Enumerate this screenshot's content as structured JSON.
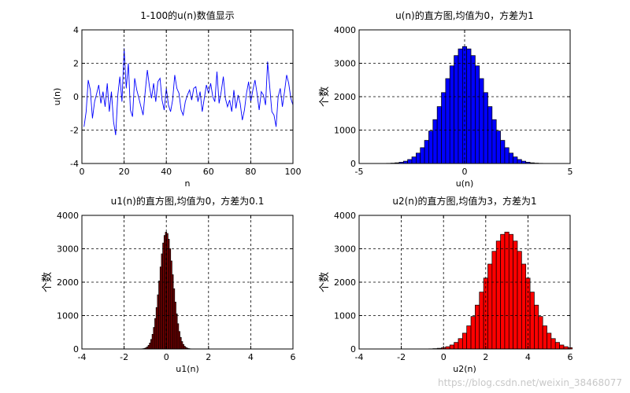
{
  "chart_data": [
    {
      "type": "line",
      "title": "1-100的u(n)数值显示",
      "xlabel": "n",
      "ylabel": "u(n)",
      "xlim": [
        0,
        100
      ],
      "ylim": [
        -4,
        4
      ],
      "xticks": [
        "0",
        "20",
        "40",
        "60",
        "80",
        "100"
      ],
      "yticks": [
        "-4",
        "-2",
        "0",
        "2",
        "4"
      ],
      "grid": true,
      "color": "#0000ff",
      "series": [
        {
          "x": [
            1,
            2,
            3,
            4,
            5,
            6,
            7,
            8,
            9,
            10,
            11,
            12,
            13,
            14,
            15,
            16,
            17,
            18,
            19,
            20,
            21,
            22,
            23,
            24,
            25,
            26,
            27,
            28,
            29,
            30,
            31,
            32,
            33,
            34,
            35,
            36,
            37,
            38,
            39,
            40,
            41,
            42,
            43,
            44,
            45,
            46,
            47,
            48,
            49,
            50,
            51,
            52,
            53,
            54,
            55,
            56,
            57,
            58,
            59,
            60,
            61,
            62,
            63,
            64,
            65,
            66,
            67,
            68,
            69,
            70,
            71,
            72,
            73,
            74,
            75,
            76,
            77,
            78,
            79,
            80,
            81,
            82,
            83,
            84,
            85,
            86,
            87,
            88,
            89,
            90,
            91,
            92,
            93,
            94,
            95,
            96,
            97,
            98,
            99,
            100
          ],
          "y": [
            -1.8,
            -0.9,
            1.0,
            0.4,
            -1.3,
            -0.3,
            0.2,
            0.7,
            -0.4,
            0.3,
            -0.6,
            0.8,
            -0.9,
            0.3,
            -1.5,
            -2.3,
            0.1,
            1.2,
            -0.3,
            2.9,
            0.5,
            2.0,
            -0.8,
            -1.2,
            1.1,
            0.4,
            -0.1,
            -0.6,
            -1.1,
            0.3,
            1.6,
            0.6,
            -0.1,
            0.8,
            -0.3,
            0.9,
            1.1,
            -0.2,
            -0.8,
            0.5,
            -0.5,
            -0.9,
            -0.2,
            1.3,
            0.5,
            0.2,
            -0.8,
            -1.1,
            -0.3,
            0.1,
            0.4,
            -0.2,
            0.5,
            0.6,
            -0.3,
            0.3,
            -0.9,
            -0.1,
            0.7,
            0.2,
            0.8,
            0.0,
            -0.3,
            1.5,
            -0.4,
            0.3,
            1.2,
            -0.1,
            -0.6,
            -0.2,
            -0.9,
            0.4,
            -0.7,
            0.1,
            -0.4,
            -1.4,
            -0.8,
            0.2,
            0.9,
            -0.3,
            0.4,
            1.0,
            0.2,
            -0.8,
            0.3,
            0.1,
            -0.5,
            2.1,
            0.6,
            -0.9,
            -1.1,
            -1.8,
            0.0,
            0.5,
            -0.6,
            0.3,
            1.3,
            0.8,
            -0.1,
            -0.5
          ]
        }
      ]
    },
    {
      "type": "bar",
      "title": "u(n)的直方图,均值为0，方差为1",
      "xlabel": "u(n)",
      "ylabel": "个数",
      "xlim": [
        -5,
        5
      ],
      "ylim": [
        0,
        4000
      ],
      "xticks": [
        "-5",
        "0",
        "5"
      ],
      "yticks": [
        "0",
        "1000",
        "2000",
        "3000",
        "4000"
      ],
      "grid": true,
      "color": "#0000ff",
      "mean": 0,
      "std": 1,
      "peak": 3500,
      "bins": [
        -4.2,
        4.4
      ],
      "binwidth": 0.2
    },
    {
      "type": "bar",
      "title": "u1(n)的直方图,均值为0，方差为0.1",
      "xlabel": "u1(n)",
      "ylabel": "个数",
      "xlim": [
        -4,
        6
      ],
      "ylim": [
        0,
        4000
      ],
      "xticks": [
        "-4",
        "-2",
        "0",
        "2",
        "4",
        "6"
      ],
      "yticks": [
        "0",
        "1000",
        "2000",
        "3000",
        "4000"
      ],
      "grid": true,
      "color": "#8b0000",
      "mean": 0,
      "std": 0.316,
      "peak": 3500,
      "bins": [
        -1.4,
        1.4
      ],
      "binwidth": 0.063
    },
    {
      "type": "bar",
      "title": "u2(n)的直方图,均值为3，方差为1",
      "xlabel": "u2(n)",
      "ylabel": "个数",
      "xlim": [
        -4,
        6
      ],
      "ylim": [
        0,
        4000
      ],
      "xticks": [
        "-4",
        "-2",
        "0",
        "2",
        "4",
        "6"
      ],
      "yticks": [
        "0",
        "1000",
        "2000",
        "3000",
        "4000"
      ],
      "grid": true,
      "color": "#ff0000",
      "mean": 3,
      "std": 1,
      "peak": 3500,
      "bins": [
        -1.2,
        6.0
      ],
      "binwidth": 0.2
    }
  ],
  "watermark": "https://blog.csdn.net/weixin_38468077"
}
